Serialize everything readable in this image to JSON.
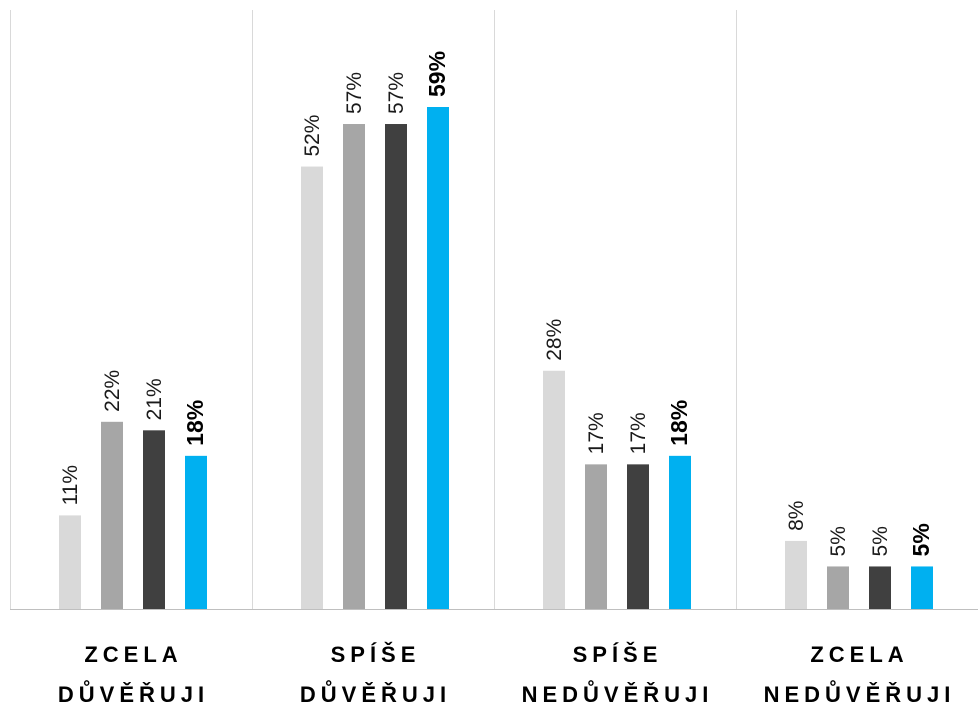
{
  "chart_data": {
    "type": "bar",
    "title": "",
    "xlabel": "",
    "ylabel": "",
    "ylim": [
      0,
      63
    ],
    "grid": false,
    "legend": "none",
    "categories": [
      [
        "ZCELA",
        "DŮVĚŘUJI"
      ],
      [
        "SPÍŠE",
        "DŮVĚŘUJI"
      ],
      [
        "SPÍŠE",
        "NEDŮVĚŘUJI"
      ],
      [
        "ZCELA",
        "NEDŮVĚŘUJI"
      ]
    ],
    "series": [
      {
        "values": [
          11,
          52,
          28,
          8
        ],
        "labels": [
          "11%",
          "52%",
          "28%",
          "8%"
        ],
        "color": "#d9d9d9"
      },
      {
        "values": [
          22,
          57,
          17,
          5
        ],
        "labels": [
          "22%",
          "57%",
          "17%",
          "5%"
        ],
        "color": "#a6a6a6"
      },
      {
        "values": [
          21,
          57,
          17,
          5
        ],
        "labels": [
          "21%",
          "57%",
          "17%",
          "5%"
        ],
        "color": "#404040"
      },
      {
        "values": [
          18,
          59,
          18,
          5
        ],
        "labels": [
          "18%",
          "59%",
          "18%",
          "5%"
        ],
        "color": "#00b0f0",
        "emphasized": true
      }
    ],
    "colors": {
      "axis": "#bfbfbf",
      "separator": "#d9d9d9"
    }
  }
}
